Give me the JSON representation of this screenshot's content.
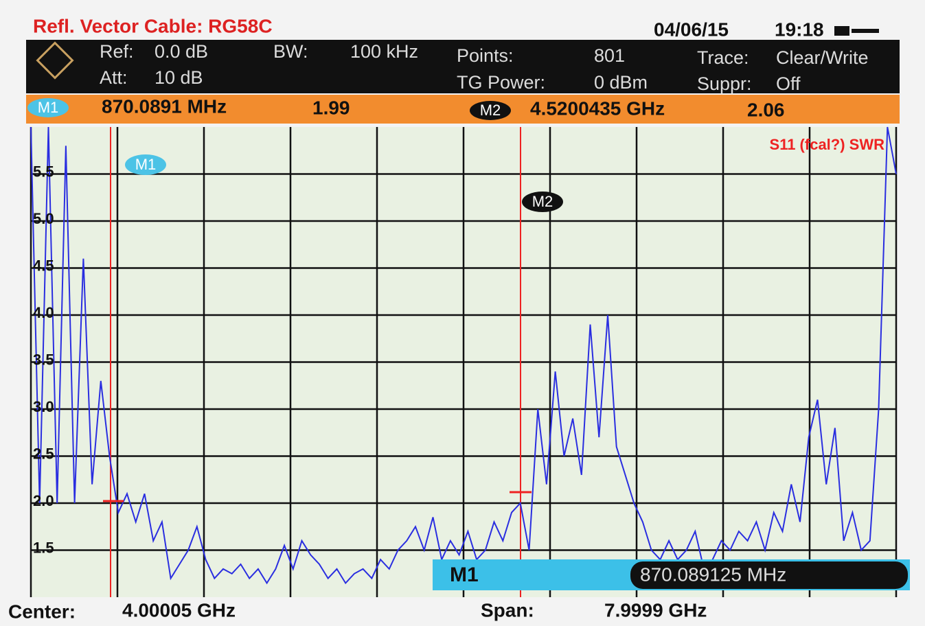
{
  "header": {
    "title": "Refl. Vector  Cable: RG58C",
    "date": "04/06/15",
    "time": "19:18"
  },
  "settings": [
    {
      "label": "Ref:",
      "value": "0.0 dB"
    },
    {
      "label": "Att:",
      "value": "10 dB"
    },
    {
      "label": "BW:",
      "value": "100 kHz"
    },
    {
      "label": "Points:",
      "value": 801
    },
    {
      "label": "TG Power:",
      "value": "0 dBm"
    },
    {
      "label": "Trace:",
      "value": "Clear/Write"
    },
    {
      "label": "Suppr:",
      "value": "Off"
    }
  ],
  "marker_bar": [
    {
      "name": "M1",
      "freq": "870.0891  MHz",
      "value": 1.99
    },
    {
      "name": "M2",
      "freq": "4.5200435  GHz",
      "value": 2.06
    }
  ],
  "plot_markers": [
    "M1",
    "M2"
  ],
  "marker_readout": {
    "name": "M1",
    "value": "870.089125 MHz"
  },
  "footer": {
    "center_label": "Center:",
    "center_value": "4.00005 GHz",
    "span_label": "Span:",
    "span_value": "7.9999 GHz"
  },
  "chart_data": {
    "type": "line",
    "title": "S11 (fcal?) SWR",
    "color": "#2a2ee0",
    "grid": true,
    "ylim": [
      1.0,
      6.0
    ],
    "yticks": [
      {
        "value": 1.5,
        "label": "1.5"
      },
      {
        "value": 2,
        "label": "2.0"
      },
      2.5,
      {
        "value": 3,
        "label": "3.0"
      },
      3.5,
      {
        "value": 4,
        "label": "4.0"
      },
      4.5,
      {
        "value": 5,
        "label": "5.0"
      },
      5.5
    ],
    "values": [
      6.0,
      2.0,
      6.0,
      2.0,
      5.8,
      2.0,
      4.6,
      2.2,
      3.3,
      2.5,
      1.9,
      2.1,
      1.8,
      2.1,
      1.6,
      1.8,
      1.2,
      1.35,
      1.5,
      1.75,
      1.4,
      1.2,
      1.3,
      1.25,
      1.35,
      1.2,
      1.3,
      1.15,
      1.3,
      1.55,
      1.3,
      1.6,
      1.45,
      1.35,
      1.2,
      1.3,
      1.15,
      1.25,
      1.3,
      1.2,
      1.4,
      1.3,
      1.5,
      1.6,
      1.75,
      1.5,
      1.85,
      1.4,
      1.6,
      1.45,
      1.7,
      1.4,
      1.5,
      1.8,
      1.6,
      1.9,
      2.0,
      1.5,
      3.0,
      2.2,
      3.4,
      2.5,
      2.9,
      2.3,
      3.9,
      2.7,
      4.0,
      2.6,
      2.3,
      2.0,
      1.8,
      1.5,
      1.4,
      1.6,
      1.4,
      1.5,
      1.7,
      1.3,
      1.4,
      1.6,
      1.5,
      1.7,
      1.6,
      1.8,
      1.5,
      1.9,
      1.7,
      2.2,
      1.8,
      2.7,
      3.1,
      2.2,
      2.8,
      1.6,
      1.9,
      1.5,
      1.6,
      3.0,
      6.0,
      5.5
    ]
  }
}
